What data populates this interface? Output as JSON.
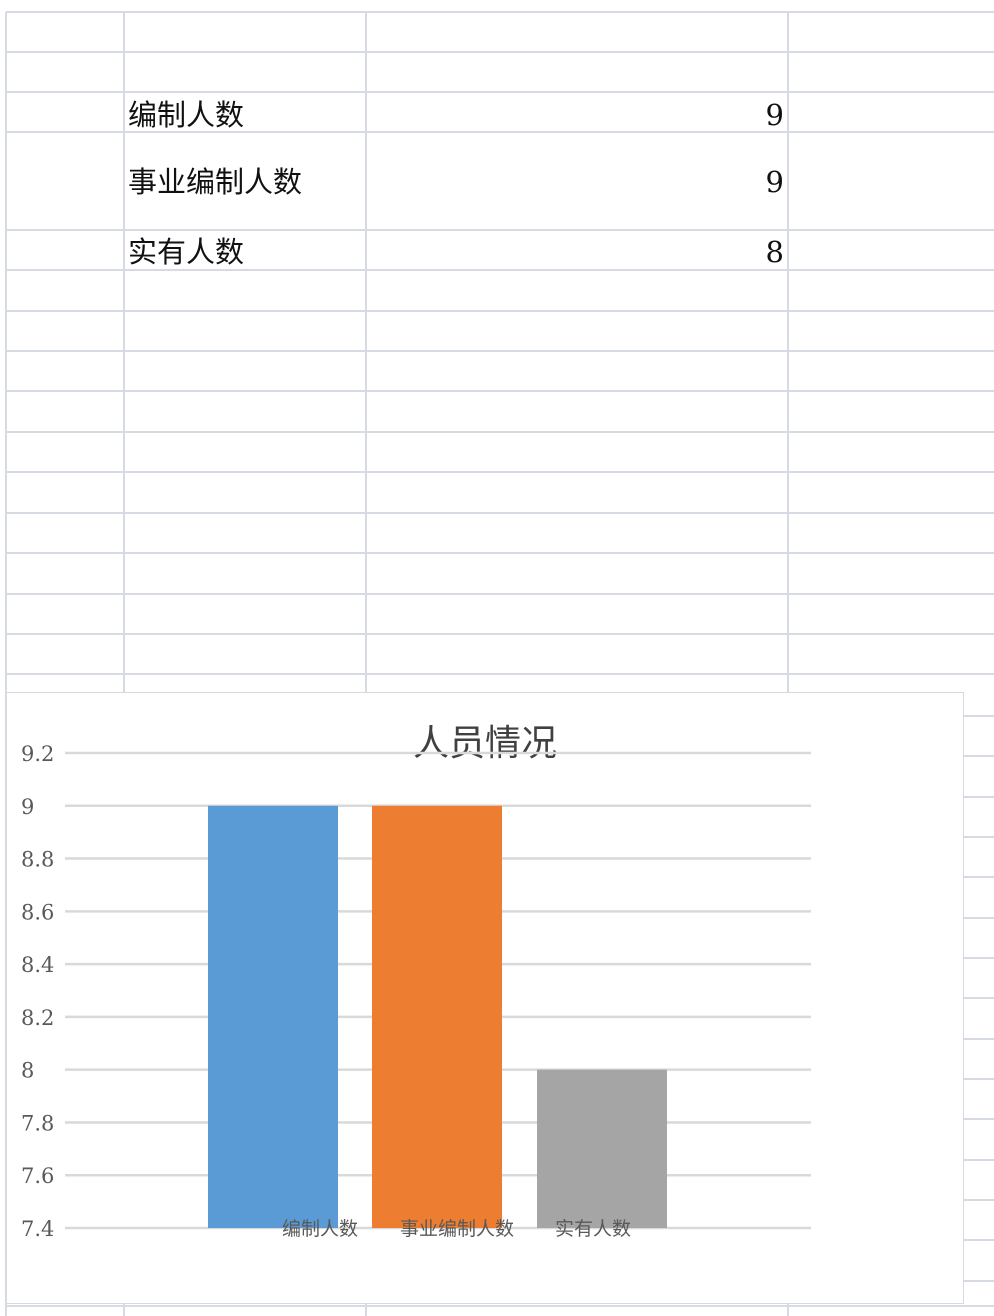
{
  "table": {
    "rows": [
      {
        "label": "编制人数",
        "value": "9"
      },
      {
        "label": "事业编制人数",
        "value": "9"
      },
      {
        "label": "实有人数",
        "value": "8"
      }
    ]
  },
  "colors": {
    "gridline": "#d6dbe3",
    "chart_gridline": "#d9d9d9",
    "series": [
      "#5b9bd5",
      "#ed7d31",
      "#a5a5a5"
    ]
  },
  "chart_data": {
    "type": "bar",
    "title": "人员情况",
    "xlabel": "",
    "ylabel": "",
    "categories": [
      "编制人数",
      "事业编制人数",
      "实有人数"
    ],
    "values": [
      9,
      9,
      8
    ],
    "ylim": [
      7.4,
      9.2
    ],
    "yticks": [
      "9.2",
      "9",
      "8.8",
      "8.6",
      "8.4",
      "8.2",
      "8",
      "7.8",
      "7.6",
      "7.4"
    ],
    "grid": true,
    "legend": "none"
  }
}
